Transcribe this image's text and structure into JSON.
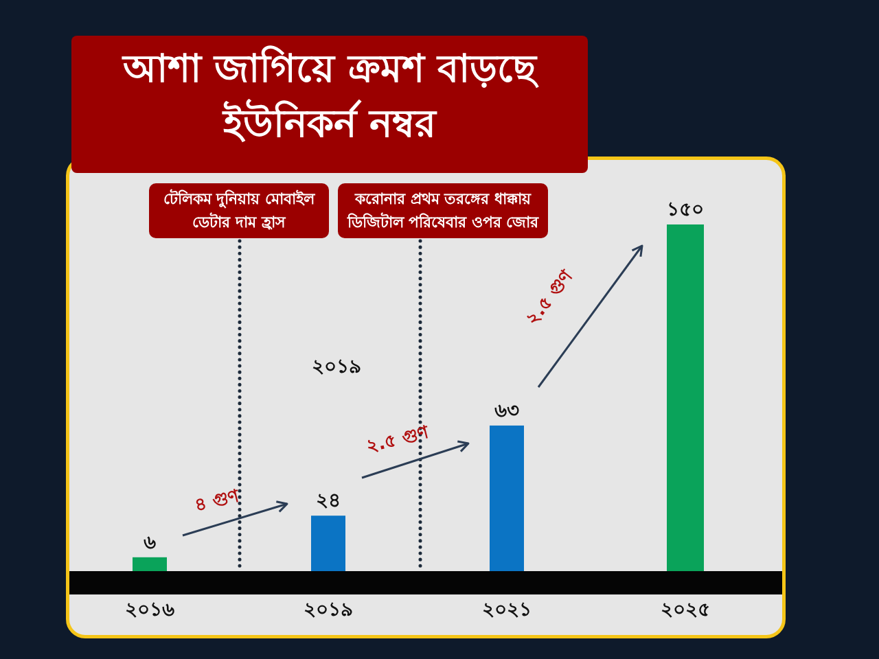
{
  "chart_data": {
    "type": "bar",
    "title": "আশা জাগিয়ে ক্রমশ বাড়ছে ইউনিকর্ন নম্বর",
    "categories": [
      "২০১৬",
      "২০১৯",
      "২০২১",
      "২০২৫"
    ],
    "values": [
      6,
      24,
      63,
      150
    ],
    "colors": [
      "#0aa35a",
      "#0b74c4",
      "#0b74c4",
      "#0aa35a"
    ],
    "value_labels": [
      "৬",
      "২৪",
      "৬৩",
      "১৫০"
    ],
    "annotations": [
      "টেলিকম দুনিয়ায় মোবাইল ডেটার দাম হ্রাস",
      "করোনার প্রথম তরঙ্গের ধাক্কায় ডিজিটাল পরিষেবার ওপর জোর",
      "২০১৯",
      "৪ গুণ",
      "২.৫ গুণ",
      "২.৫ গুণ"
    ]
  }
}
